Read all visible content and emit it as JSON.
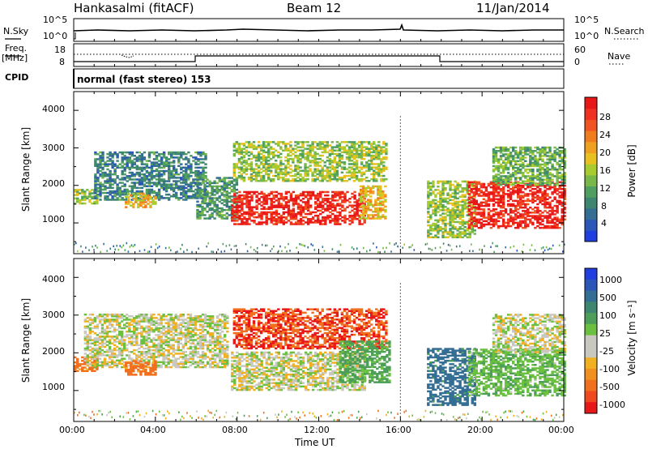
{
  "header": {
    "station": "Hankasalmi (fitACF)",
    "beam": "Beam 12",
    "date": "11/Jan/2014"
  },
  "noise_panel": {
    "left_label": "N.Sky",
    "right_label": "N.Search",
    "ticks_left": [
      "10^5",
      "10^0"
    ],
    "ticks_right": [
      "10^5",
      "10^0"
    ]
  },
  "freq_panel": {
    "left_label_1": "Freq.",
    "left_label_2": "[MHz]",
    "right_label": "Nave",
    "ticks_left": [
      "18",
      "8"
    ],
    "ticks_right": [
      "60",
      "0"
    ]
  },
  "cpid": {
    "label": "CPID",
    "value": "normal (fast stereo) 153"
  },
  "axes": {
    "xlabel": "Time UT",
    "ylabel": "Slant Range [km]",
    "x_ticks": [
      "00:00",
      "04:00",
      "08:00",
      "12:00",
      "16:00",
      "20:00",
      "00:00"
    ],
    "y_ticks": [
      "1000",
      "2000",
      "3000",
      "4000"
    ]
  },
  "colorbars": {
    "power": {
      "label": "Power [dB]",
      "ticks": [
        "4",
        "8",
        "12",
        "16",
        "20",
        "24",
        "28"
      ],
      "colors": [
        "#1f3fe0",
        "#2b57b8",
        "#356e94",
        "#3f8670",
        "#4fa060",
        "#78b848",
        "#a8cc30",
        "#e8c020",
        "#f0a020",
        "#f07c20",
        "#f05420",
        "#f03020",
        "#e81818"
      ]
    },
    "velocity": {
      "label": "Velocity [m s⁻¹]",
      "ticks": [
        "1000",
        "500",
        "100",
        "25",
        "-25",
        "-100",
        "-500",
        "-1000"
      ],
      "colors": [
        "#1f3fe0",
        "#2b57b8",
        "#356e94",
        "#3f8670",
        "#4c9e58",
        "#6cc040",
        "#c8c8c0",
        "#c8c8c0",
        "#f0b020",
        "#f09020",
        "#f07020",
        "#f04820",
        "#e81818"
      ]
    }
  },
  "chart_data": [
    {
      "type": "heatmap",
      "name": "power",
      "xlim": [
        0,
        24
      ],
      "ylim": [
        180,
        4500
      ],
      "unit": "dB",
      "regions": [
        {
          "t": [
            0.0,
            1.2
          ],
          "r": [
            1500,
            1900
          ],
          "v": 14
        },
        {
          "t": [
            1.0,
            6.5
          ],
          "r": [
            1600,
            2900
          ],
          "v": 8
        },
        {
          "t": [
            2.5,
            4.0
          ],
          "r": [
            1400,
            1800
          ],
          "v": 18
        },
        {
          "t": [
            6.0,
            8.0
          ],
          "r": [
            1100,
            2200
          ],
          "v": 10
        },
        {
          "t": [
            7.7,
            14.2
          ],
          "r": [
            950,
            1850
          ],
          "v": 27
        },
        {
          "t": [
            7.8,
            15.3
          ],
          "r": [
            2100,
            3150
          ],
          "v": 14
        },
        {
          "t": [
            14.0,
            15.3
          ],
          "r": [
            1100,
            2000
          ],
          "v": 18
        },
        {
          "t": [
            17.3,
            19.6
          ],
          "r": [
            600,
            2100
          ],
          "v": 14
        },
        {
          "t": [
            19.3,
            24.0
          ],
          "r": [
            850,
            2100
          ],
          "v": 27
        },
        {
          "t": [
            20.5,
            24.0
          ],
          "r": [
            2000,
            3000
          ],
          "v": 12
        }
      ]
    },
    {
      "type": "heatmap",
      "name": "velocity",
      "xlim": [
        0,
        24
      ],
      "ylim": [
        180,
        4500
      ],
      "unit": "m s-1",
      "regions": [
        {
          "t": [
            0.0,
            1.2
          ],
          "r": [
            1500,
            1900
          ],
          "v": -150
        },
        {
          "t": [
            0.5,
            7.5
          ],
          "r": [
            1600,
            3000
          ],
          "v": 0
        },
        {
          "t": [
            2.5,
            4.0
          ],
          "r": [
            1400,
            1800
          ],
          "v": -150
        },
        {
          "t": [
            7.7,
            14.2
          ],
          "r": [
            1000,
            2000
          ],
          "v": 0
        },
        {
          "t": [
            7.8,
            15.3
          ],
          "r": [
            2100,
            3150
          ],
          "v": -300
        },
        {
          "t": [
            13.0,
            15.4
          ],
          "r": [
            1200,
            2300
          ],
          "v": 120
        },
        {
          "t": [
            17.3,
            19.6
          ],
          "r": [
            600,
            2100
          ],
          "v": 350
        },
        {
          "t": [
            19.3,
            24.0
          ],
          "r": [
            850,
            2100
          ],
          "v": 80
        },
        {
          "t": [
            20.5,
            24.0
          ],
          "r": [
            2000,
            3000
          ],
          "v": 0
        }
      ]
    }
  ]
}
